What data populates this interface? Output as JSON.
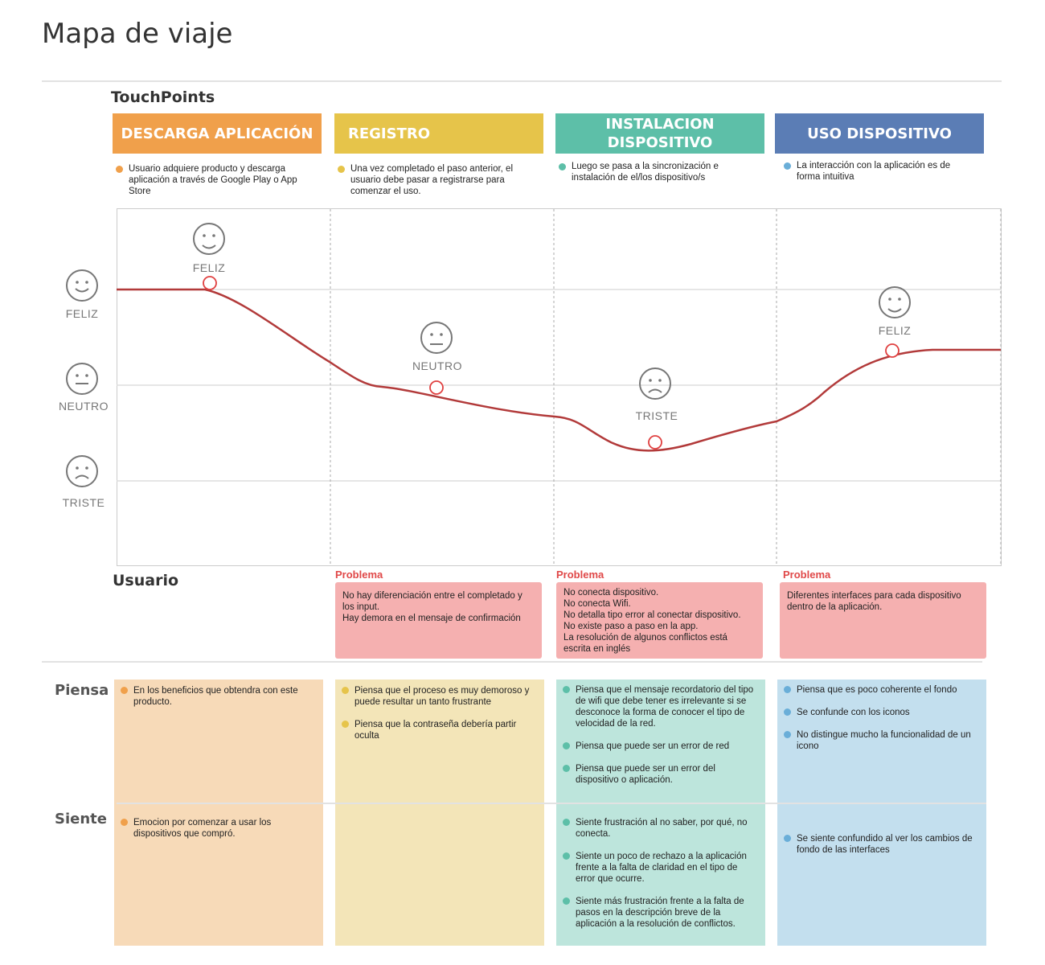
{
  "title": "Mapa de viaje",
  "touchpoints_label": "TouchPoints",
  "colors": {
    "orange": "#F0A04B",
    "yellow": "#E6C44A",
    "teal": "#5DBFA8",
    "blue": "#5B7DB5",
    "curve": "#B23A3A",
    "problem": "#e04848"
  },
  "stages": [
    {
      "title": "DESCARGA  APLICACIÓN",
      "desc": "Usuario adquiere producto y descarga aplicación a través de Google Play o App Store",
      "emotion": "FELIZ",
      "face": "smile-icon"
    },
    {
      "title": "REGISTRO",
      "desc": "Una vez completado el paso anterior, el usuario debe pasar a registrarse para comenzar el uso.",
      "emotion": "NEUTRO",
      "face": "neutral-face-icon"
    },
    {
      "title": "INSTALACION DISPOSITIVO",
      "desc": "Luego se pasa a la sincronización e instalación de el/los dispositivo/s",
      "emotion": "TRISTE",
      "face": "sad-face-icon"
    },
    {
      "title": "USO DISPOSITIVO",
      "desc": "La interacción con la aplicación es de forma intuitiva",
      "emotion": "FELIZ",
      "face": "smile-icon"
    }
  ],
  "scale": [
    "FELIZ",
    "NEUTRO",
    "TRISTE"
  ],
  "user_label": "Usuario",
  "problem_label": "Problema",
  "problems": [
    "No hay diferenciación entre el completado y los input.\nHay demora en el mensaje de confirmación",
    "No conecta dispositivo.\nNo conecta Wifi.\nNo detalla tipo error al conectar dispositivo.\nNo existe paso a paso en la app.\nLa resolución de algunos conflictos está escrita en inglés",
    "Diferentes interfaces para cada dispositivo dentro de la aplicación."
  ],
  "thinks_label": "Piensa",
  "feels_label": "Siente",
  "thinks": [
    [
      "En los beneficios que obtendra con este producto."
    ],
    [
      "Piensa que el proceso es muy demoroso y puede resultar un tanto frustrante",
      "Piensa que la contraseña debería partir oculta"
    ],
    [
      "Piensa que el mensaje recordatorio del tipo de wifi que debe tener es irrelevante si se desconoce la forma de conocer el tipo de velocidad de la red.",
      "Piensa que puede ser un error de red",
      "Piensa que puede ser un error del dispositivo o aplicación."
    ],
    [
      "Piensa que es poco coherente el fondo",
      "Se confunde con los iconos",
      "No distingue mucho la funcionalidad de un icono"
    ]
  ],
  "feels": [
    [
      "Emocion por comenzar a usar los dispositivos que compró."
    ],
    [],
    [
      "Siente frustración al no saber, por qué, no conecta.",
      "Siente un poco de rechazo a la aplicación frente a la falta de claridad en el tipo de error que ocurre.",
      "Siente más frustración frente a la falta de pasos en la descripción breve de la aplicación a la resolución de conflictos."
    ],
    [
      "Se siente  confundido al ver los cambios de fondo de las interfaces"
    ]
  ]
}
